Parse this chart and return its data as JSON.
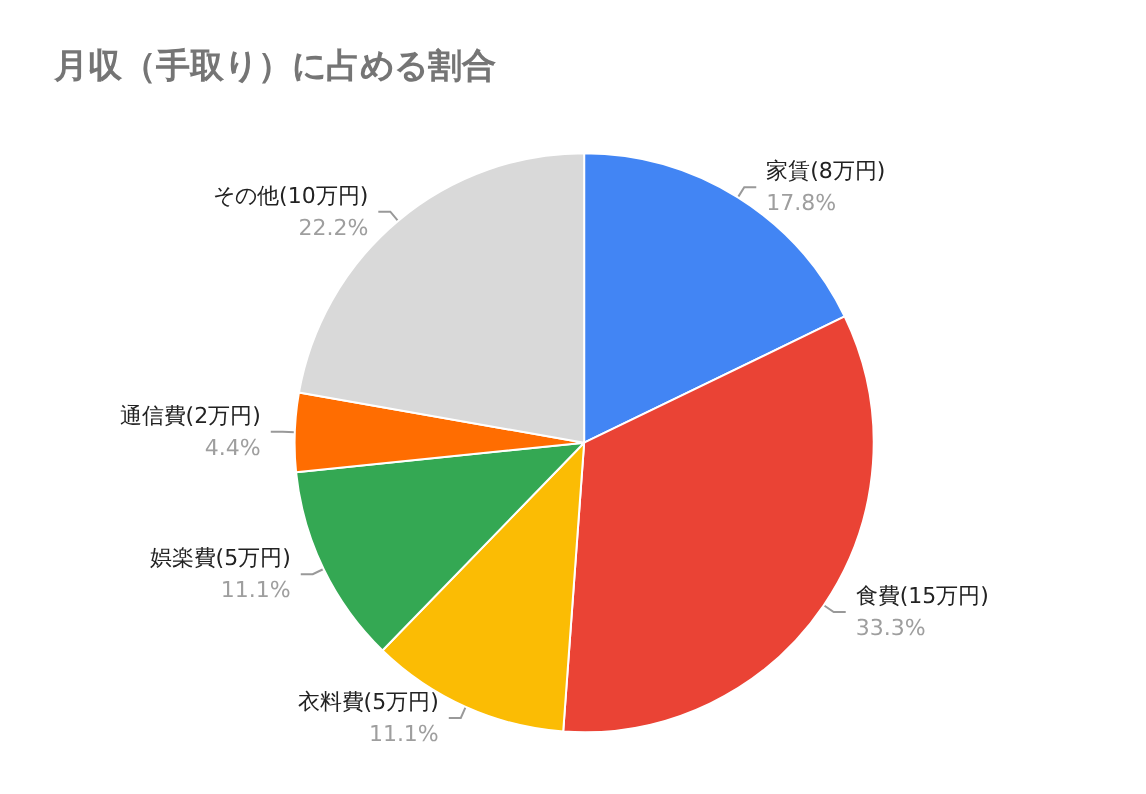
{
  "chart_data": {
    "type": "pie",
    "title": "月収（手取り）に占める割合",
    "categories": [
      "家賃(8万円)",
      "食費(15万円)",
      "衣料費(5万円)",
      "娯楽費(5万円)",
      "通信費(2万円)",
      "その他(10万円)"
    ],
    "values": [
      17.8,
      33.3,
      11.1,
      11.1,
      4.4,
      22.2
    ],
    "value_labels": [
      "17.8%",
      "33.3%",
      "11.1%",
      "11.1%",
      "4.4%",
      "22.2%"
    ],
    "colors": [
      "#4285f4",
      "#ea4335",
      "#fbbc04",
      "#34a853",
      "#ff6d01",
      "#d9d9d9"
    ],
    "legend": false
  }
}
